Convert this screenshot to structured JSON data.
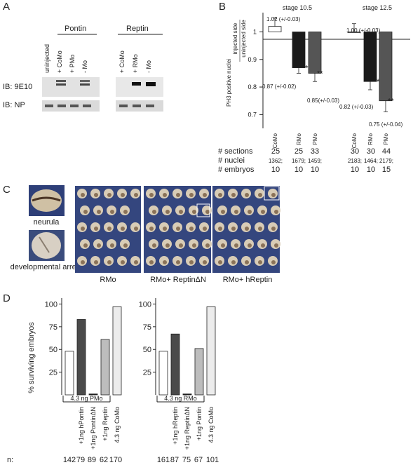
{
  "panels": {
    "a": "A",
    "b": "B",
    "c": "C",
    "d": "D"
  },
  "panel_a": {
    "groups": [
      {
        "title": "Pontin",
        "lanes": [
          "uninjected",
          "+ CoMo",
          "+ PMo",
          "- Mo"
        ]
      },
      {
        "title": "Reptin",
        "lanes": [
          "+ CoMo",
          "+ RMo",
          "- Mo"
        ]
      }
    ],
    "blot_labels": [
      "IB: 9E10",
      "IB: NP"
    ]
  },
  "panel_c": {
    "insets": [
      "neurula",
      "developmental arrest"
    ],
    "photos": [
      "RMo",
      "RMo+ ReptinΔN",
      "RMo+ hReptin"
    ]
  },
  "chart_data": [
    {
      "type": "bar",
      "ylabel": "PH3 positive nuclei",
      "ylabel_ratio_top": "injected side",
      "ylabel_ratio_bottom": "uninjected side",
      "ylim": [
        0.65,
        1.07
      ],
      "yticks": [
        0.7,
        0.8,
        0.9,
        1.0
      ],
      "ytick_labels": [
        "0.7",
        "0.8",
        "0.9",
        "1"
      ],
      "baseline": 1.0,
      "stages": [
        {
          "label": "stage 10.5",
          "bars": [
            {
              "category": "CoMo",
              "value": 1.02,
              "error": 0.03,
              "label": "1.02 (+/-0.03)",
              "sig": "",
              "color": "#ffffff"
            },
            {
              "category": "RMo",
              "value": 0.87,
              "error": 0.02,
              "label": "0.87 (+/-0.02)",
              "sig": "**",
              "color": "#1a1a1a"
            },
            {
              "category": "PMo",
              "value": 0.85,
              "error": 0.03,
              "label": "0.85(+/-0.03)",
              "sig": "**",
              "color": "#555555"
            }
          ]
        },
        {
          "label": "stage 12.5",
          "bars": [
            {
              "category": "CoMo",
              "value": 1.0,
              "error": 0.03,
              "label": "1.00 (+/-0.03)",
              "sig": "",
              "color": "#ffffff"
            },
            {
              "category": "RMo",
              "value": 0.82,
              "error": 0.03,
              "label": "0.82 (+/-0.03)",
              "sig": "**",
              "color": "#1a1a1a"
            },
            {
              "category": "PMo",
              "value": 0.75,
              "error": 0.04,
              "label": "0.75 (+/-0.04)",
              "sig": "**",
              "color": "#555555"
            }
          ]
        }
      ],
      "table": {
        "rows": [
          {
            "label": "# sections",
            "values": [
              "25",
              "25",
              "33",
              "30",
              "30",
              "44"
            ]
          },
          {
            "label": "# nuclei",
            "values": [
              "1362;",
              "1679;",
              "1459;",
              "2183;",
              "1464;",
              "2179;"
            ]
          },
          {
            "label": "# embryos",
            "values": [
              "10",
              "10",
              "10",
              "10",
              "10",
              "15"
            ]
          }
        ]
      }
    },
    {
      "type": "bar",
      "ylabel": "% surviving embryos",
      "ylim": [
        0,
        105
      ],
      "yticks": [
        25,
        50,
        75,
        100
      ],
      "ytick_labels": [
        "25",
        "50",
        "75",
        "100"
      ],
      "n_label": "n:",
      "groups": [
        {
          "bracket": "4.3 ng PMo",
          "categories": [
            "",
            "+1ng hPontin",
            "+1ng PontinΔN",
            "+1ng Reptin",
            "4.3 ng CoMo"
          ],
          "values": [
            48,
            83,
            1,
            61,
            97
          ],
          "colors": [
            "#ffffff",
            "#4a4a4a",
            "#1a1a1a",
            "#bdbdbd",
            "#ececec"
          ],
          "n": [
            "142",
            "79",
            "89",
            "62",
            "170"
          ]
        },
        {
          "bracket": "4.3 ng RMo",
          "categories": [
            "",
            "+1ng hReptin",
            "+1ng ReptinΔN",
            "+1ng Pontin",
            "4.3 ng CoMo"
          ],
          "values": [
            48,
            67,
            1,
            51,
            97
          ],
          "colors": [
            "#ffffff",
            "#4a4a4a",
            "#1a1a1a",
            "#bdbdbd",
            "#ececec"
          ],
          "n": [
            "161",
            "87",
            "75",
            "67",
            "101"
          ]
        }
      ]
    }
  ]
}
